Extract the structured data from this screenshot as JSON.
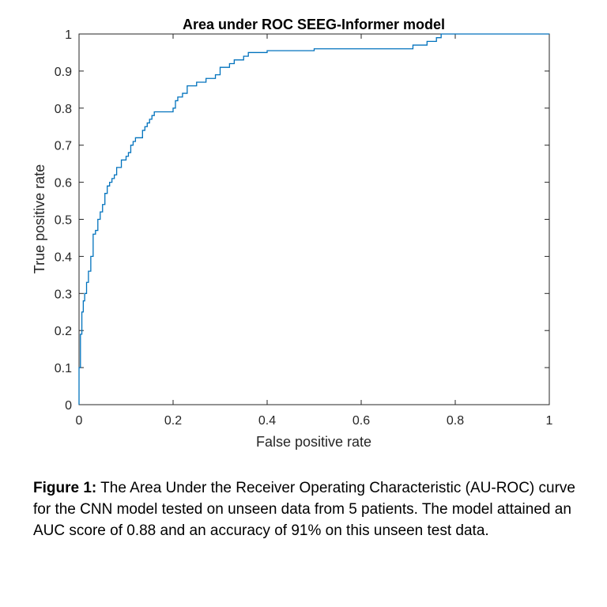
{
  "chart_data": {
    "type": "line",
    "title": "Area under ROC SEEG-Informer model",
    "xlabel": "False positive rate",
    "ylabel": "True positive rate",
    "xlim": [
      0,
      1
    ],
    "ylim": [
      0,
      1
    ],
    "xticks": [
      0,
      0.2,
      0.4,
      0.6,
      0.8,
      1
    ],
    "xtick_labels": [
      "0",
      "0.2",
      "0.4",
      "0.6",
      "0.8",
      "1"
    ],
    "yticks": [
      0,
      0.1,
      0.2,
      0.3,
      0.4,
      0.5,
      0.6,
      0.7,
      0.8,
      0.9,
      1
    ],
    "ytick_labels": [
      "0",
      "0.1",
      "0.2",
      "0.3",
      "0.4",
      "0.5",
      "0.6",
      "0.7",
      "0.8",
      "0.9",
      "1"
    ],
    "grid": false,
    "line_color": "#0072bd",
    "series": [
      {
        "x": [
          0,
          0,
          0.003,
          0.003,
          0.006,
          0.006,
          0.009,
          0.009,
          0.012,
          0.012,
          0.016,
          0.016,
          0.02,
          0.02,
          0.025,
          0.025,
          0.03,
          0.03,
          0.035,
          0.035,
          0.04,
          0.04,
          0.045,
          0.045,
          0.05,
          0.05,
          0.055,
          0.055,
          0.06,
          0.06,
          0.065,
          0.065,
          0.07,
          0.07,
          0.075,
          0.075,
          0.08,
          0.08,
          0.09,
          0.09,
          0.1,
          0.1,
          0.105,
          0.105,
          0.11,
          0.11,
          0.115,
          0.115,
          0.12,
          0.12,
          0.135,
          0.135,
          0.14,
          0.14,
          0.145,
          0.145,
          0.15,
          0.15,
          0.155,
          0.155,
          0.16,
          0.16,
          0.2,
          0.2,
          0.205,
          0.205,
          0.21,
          0.21,
          0.22,
          0.22,
          0.23,
          0.23,
          0.25,
          0.25,
          0.27,
          0.27,
          0.29,
          0.29,
          0.3,
          0.3,
          0.32,
          0.32,
          0.33,
          0.33,
          0.35,
          0.35,
          0.36,
          0.36,
          0.4,
          0.4,
          0.5,
          0.5,
          0.71,
          0.71,
          0.74,
          0.74,
          0.76,
          0.76,
          0.77,
          0.77,
          0.78,
          0.78,
          1
        ],
        "y": [
          0,
          0.1,
          0.1,
          0.19,
          0.19,
          0.25,
          0.25,
          0.28,
          0.28,
          0.3,
          0.3,
          0.33,
          0.33,
          0.36,
          0.36,
          0.4,
          0.4,
          0.46,
          0.46,
          0.47,
          0.47,
          0.5,
          0.5,
          0.52,
          0.52,
          0.54,
          0.54,
          0.57,
          0.57,
          0.59,
          0.59,
          0.6,
          0.6,
          0.61,
          0.61,
          0.62,
          0.62,
          0.64,
          0.64,
          0.66,
          0.66,
          0.67,
          0.67,
          0.68,
          0.68,
          0.7,
          0.7,
          0.71,
          0.71,
          0.72,
          0.72,
          0.74,
          0.74,
          0.75,
          0.75,
          0.76,
          0.76,
          0.77,
          0.77,
          0.78,
          0.78,
          0.79,
          0.79,
          0.8,
          0.8,
          0.82,
          0.82,
          0.83,
          0.83,
          0.84,
          0.84,
          0.86,
          0.86,
          0.87,
          0.87,
          0.88,
          0.88,
          0.89,
          0.89,
          0.91,
          0.91,
          0.92,
          0.92,
          0.93,
          0.93,
          0.94,
          0.94,
          0.95,
          0.95,
          0.955,
          0.955,
          0.96,
          0.96,
          0.97,
          0.97,
          0.98,
          0.98,
          0.99,
          0.99,
          1,
          1,
          1,
          1
        ]
      }
    ]
  },
  "caption": {
    "label": "Figure 1:",
    "text": " The Area Under the Receiver Operating Characteristic (AU-ROC) curve for the CNN model tested on unseen data from 5 patients. The model attained an AUC score of 0.88 and an accuracy of 91% on this unseen test data."
  }
}
